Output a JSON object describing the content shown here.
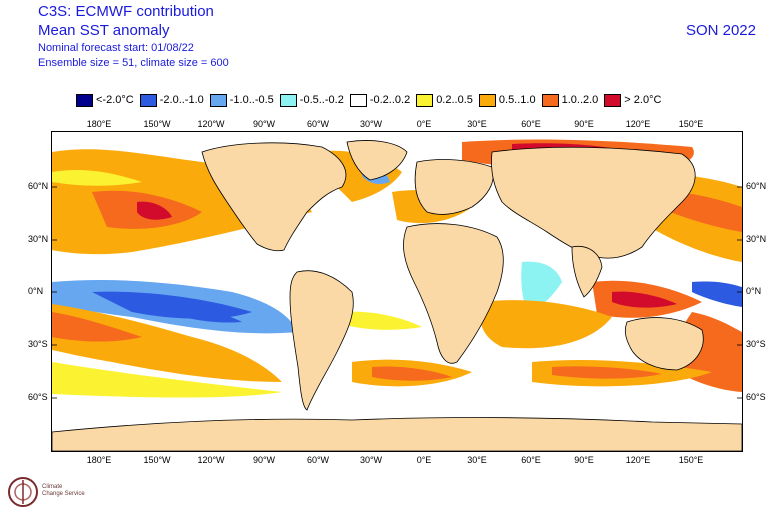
{
  "header": {
    "title": "C3S: ECMWF contribution",
    "subtitle": "Mean SST anomaly",
    "forecast_start": "Nominal forecast start: 01/08/22",
    "ensemble": "Ensemble size = 51, climate size = 600",
    "season": "SON 2022"
  },
  "legend": [
    {
      "label": "<-2.0°C",
      "color": "#00008c"
    },
    {
      "label": "-2.0..-1.0",
      "color": "#2c5ae0"
    },
    {
      "label": "-1.0..-0.5",
      "color": "#67a7f0"
    },
    {
      "label": "-0.5..-0.2",
      "color": "#8cf2f2"
    },
    {
      "label": "-0.2..0.2",
      "color": "#ffffff"
    },
    {
      "label": "0.2..0.5",
      "color": "#fbf331"
    },
    {
      "label": "0.5..1.0",
      "color": "#fbaa0c"
    },
    {
      "label": "1.0..2.0",
      "color": "#f56a1c"
    },
    {
      "label": "> 2.0°C",
      "color": "#d20a2c"
    }
  ],
  "colors": {
    "land": "#fad9a6",
    "ocean_neutral": "#ffffff"
  },
  "axes": {
    "lon_labels": [
      "180°E",
      "150°W",
      "120°W",
      "90°W",
      "60°W",
      "30°W",
      "0°E",
      "30°E",
      "60°E",
      "90°E",
      "120°E",
      "150°E"
    ],
    "lat_labels": [
      "60°N",
      "30°N",
      "0°N",
      "30°S",
      "60°S"
    ]
  },
  "logo": {
    "text_line1": "Climate",
    "text_line2": "Change Service"
  }
}
